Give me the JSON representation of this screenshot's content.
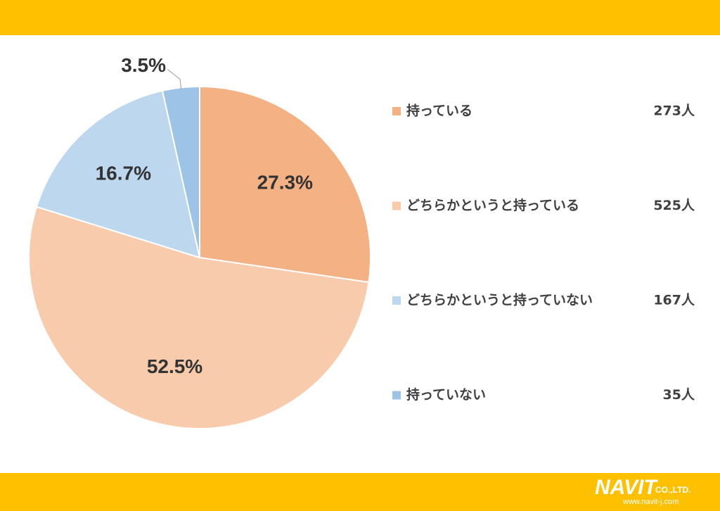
{
  "chart_data": {
    "type": "pie",
    "categories": [
      "持っている",
      "どちらかというと持っている",
      "どちらかというと持っていない",
      "持っていない"
    ],
    "values": [
      27.3,
      52.5,
      16.7,
      3.5
    ],
    "value_labels": [
      "27.3%",
      "52.5%",
      "16.7%",
      "3.5%"
    ],
    "counts": [
      "273人",
      "525人",
      "167人",
      "35人"
    ],
    "colors": [
      "#f4b183",
      "#f8cbad",
      "#bdd7ee",
      "#9dc3e6"
    ]
  },
  "footer": {
    "logo": "NAVIT",
    "company": "CO.,LTD.",
    "url": "www.navit-j.com"
  }
}
